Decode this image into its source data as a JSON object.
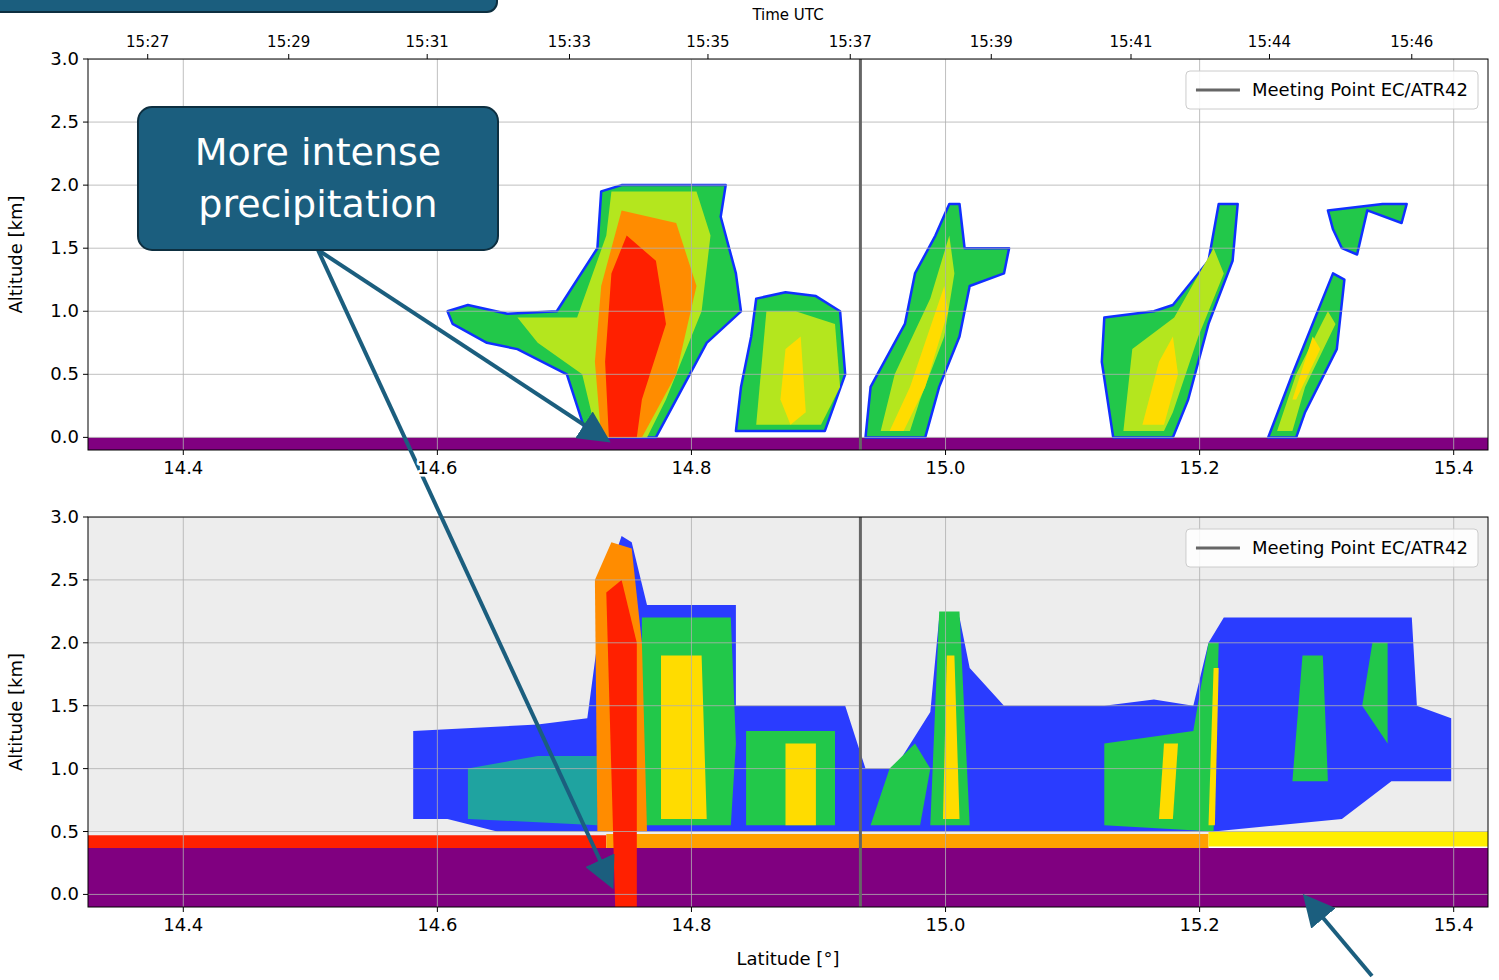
{
  "chart_data": [
    {
      "type": "contour",
      "x2_label": "Time UTC",
      "y_label": "Altitude [km]",
      "xlim": [
        14.325,
        15.427
      ],
      "ylim": [
        -0.1,
        3.0
      ],
      "xticks": [
        14.4,
        14.6,
        14.8,
        {
          "value": 15,
          "label": "15.0"
        },
        15.2,
        15.4
      ],
      "yticks": [
        {
          "value": 0,
          "label": "0.0"
        },
        0.5,
        {
          "value": 1,
          "label": "1.0"
        },
        1.5,
        {
          "value": 2,
          "label": "2.0"
        },
        2.5,
        {
          "value": 3,
          "label": "3.0"
        }
      ],
      "x2ticks": [
        {
          "value": 14.372,
          "label": "15:27"
        },
        {
          "value": 14.483,
          "label": "15:29"
        },
        {
          "value": 14.592,
          "label": "15:31"
        },
        {
          "value": 14.704,
          "label": "15:33"
        },
        {
          "value": 14.813,
          "label": "15:35"
        },
        {
          "value": 14.925,
          "label": "15:37"
        },
        {
          "value": 15.036,
          "label": "15:39"
        },
        {
          "value": 15.146,
          "label": "15:41"
        },
        {
          "value": 15.255,
          "label": "15:44"
        },
        {
          "value": 15.367,
          "label": "15:46"
        }
      ],
      "grid": true,
      "legend": "upper right",
      "series": [
        {
          "name": "Meeting Point EC/ATR42",
          "type": "vline",
          "color": "#666666",
          "x": 14.933
        }
      ],
      "annotations": [
        "More intense precipitation"
      ],
      "echoes": [
        {
          "color": "#800080",
          "lat": [
            14.325,
            15.427,
            15.427,
            14.325
          ],
          "alt": [
            -0.1,
            -0.1,
            0.0,
            0.0
          ]
        },
        {
          "color": "#22c84a",
          "lat": [
            14.608,
            14.624,
            14.655,
            14.694,
            14.726,
            14.729,
            14.745,
            14.827,
            14.823,
            14.835,
            14.839,
            14.812,
            14.772,
            14.718,
            14.702,
            14.663,
            14.639,
            14.612
          ],
          "alt": [
            1.0,
            1.05,
            0.98,
            1.0,
            1.5,
            1.95,
            2.0,
            2.0,
            1.75,
            1.3,
            1.0,
            0.75,
            0.0,
            0.0,
            0.5,
            0.7,
            0.75,
            0.9
          ]
        },
        {
          "color": "#b4e61e",
          "lat": [
            14.663,
            14.71,
            14.733,
            14.737,
            14.804,
            14.815,
            14.808,
            14.78,
            14.765,
            14.726,
            14.714,
            14.679
          ],
          "alt": [
            0.95,
            0.95,
            1.6,
            1.95,
            1.95,
            1.6,
            1.0,
            0.3,
            0.0,
            0.0,
            0.5,
            0.75
          ]
        },
        {
          "color": "#ff8c00",
          "lat": [
            14.729,
            14.745,
            14.788,
            14.804,
            14.788,
            14.761,
            14.729,
            14.724
          ],
          "alt": [
            1.2,
            1.8,
            1.7,
            1.2,
            0.5,
            0.0,
            0.0,
            0.6
          ]
        },
        {
          "color": "#ff2000",
          "lat": [
            14.737,
            14.749,
            14.772,
            14.78,
            14.761,
            14.757,
            14.735,
            14.732
          ],
          "alt": [
            1.3,
            1.6,
            1.4,
            0.9,
            0.3,
            0.0,
            0.0,
            0.6
          ]
        },
        {
          "color": "#22c84a",
          "lat": [
            14.851,
            14.874,
            14.898,
            14.917,
            14.921,
            14.905,
            14.835,
            14.839,
            14.847
          ],
          "alt": [
            1.1,
            1.15,
            1.12,
            1.0,
            0.5,
            0.05,
            0.05,
            0.4,
            0.8
          ]
        },
        {
          "color": "#b4e61e",
          "lat": [
            14.859,
            14.882,
            14.913,
            14.917,
            14.902,
            14.851
          ],
          "alt": [
            1.0,
            1.0,
            0.9,
            0.4,
            0.1,
            0.1
          ]
        },
        {
          "color": "#ffdc00",
          "lat": [
            14.874,
            14.886,
            14.89,
            14.878,
            14.87
          ],
          "alt": [
            0.7,
            0.8,
            0.2,
            0.1,
            0.3
          ]
        },
        {
          "color": "#22c84a",
          "lat": [
            14.937,
            14.941,
            14.968,
            14.976,
            14.992,
            15.003,
            15.011,
            15.015,
            15.05,
            15.046,
            15.019,
            15.011,
            14.995,
            14.984
          ],
          "alt": [
            0.0,
            0.4,
            0.9,
            1.3,
            1.6,
            1.85,
            1.85,
            1.5,
            1.5,
            1.3,
            1.2,
            0.8,
            0.4,
            0.0
          ]
        },
        {
          "color": "#b4e61e",
          "lat": [
            14.949,
            14.96,
            14.988,
            15.003,
            15.007,
            14.999,
            14.98,
            14.972
          ],
          "alt": [
            0.05,
            0.5,
            1.1,
            1.6,
            1.3,
            0.8,
            0.3,
            0.05
          ]
        },
        {
          "color": "#ffdc00",
          "lat": [
            14.956,
            14.972,
            14.999,
            15.002,
            14.984,
            14.967
          ],
          "alt": [
            0.05,
            0.4,
            1.2,
            1.0,
            0.4,
            0.05
          ]
        },
        {
          "color": "#22c84a",
          "lat": [
            15.132,
            15.123,
            15.125,
            15.164,
            15.179,
            15.207,
            15.215,
            15.23,
            15.226,
            15.207,
            15.191,
            15.179
          ],
          "alt": [
            0.0,
            0.6,
            0.95,
            1.0,
            1.05,
            1.4,
            1.85,
            1.85,
            1.4,
            0.9,
            0.3,
            0.0
          ]
        },
        {
          "color": "#b4e61e",
          "lat": [
            15.14,
            15.147,
            15.18,
            15.211,
            15.219,
            15.199,
            15.179,
            15.172
          ],
          "alt": [
            0.05,
            0.7,
            0.95,
            1.5,
            1.3,
            0.8,
            0.2,
            0.05
          ]
        },
        {
          "color": "#ffdc00",
          "lat": [
            15.155,
            15.168,
            15.179,
            15.183,
            15.172
          ],
          "alt": [
            0.1,
            0.6,
            0.8,
            0.5,
            0.1
          ]
        },
        {
          "color": "#22c84a",
          "lat": [
            15.254,
            15.273,
            15.297,
            15.305,
            15.314,
            15.308,
            15.283,
            15.276
          ],
          "alt": [
            0.0,
            0.5,
            1.1,
            1.3,
            1.25,
            0.7,
            0.2,
            0.0
          ]
        },
        {
          "color": "#b4e61e",
          "lat": [
            15.261,
            15.276,
            15.301,
            15.307,
            15.283,
            15.273
          ],
          "alt": [
            0.05,
            0.5,
            1.0,
            0.9,
            0.4,
            0.05
          ]
        },
        {
          "color": "#ffdc00",
          "lat": [
            15.273,
            15.289,
            15.295,
            15.276
          ],
          "alt": [
            0.3,
            0.8,
            0.7,
            0.3
          ]
        },
        {
          "color": "#22c84a",
          "lat": [
            15.301,
            15.344,
            15.363,
            15.359,
            15.332,
            15.324,
            15.312,
            15.305
          ],
          "alt": [
            1.8,
            1.85,
            1.85,
            1.7,
            1.8,
            1.45,
            1.5,
            1.65
          ]
        }
      ]
    },
    {
      "type": "contour",
      "x_label": "Latitude [°]",
      "y_label": "Altitude [km]",
      "xlim": [
        14.325,
        15.427
      ],
      "ylim": [
        -0.1,
        3.0
      ],
      "xticks": [
        14.4,
        14.6,
        14.8,
        {
          "value": 15,
          "label": "15.0"
        },
        15.2,
        15.4
      ],
      "yticks": [
        {
          "value": 0,
          "label": "0.0"
        },
        0.5,
        {
          "value": 1,
          "label": "1.0"
        },
        1.5,
        {
          "value": 2,
          "label": "2.0"
        },
        2.5,
        {
          "value": 3,
          "label": "3.0"
        }
      ],
      "grid": true,
      "legend": "upper right",
      "series": [
        {
          "name": "Meeting Point EC/ATR42",
          "type": "vline",
          "color": "#666666",
          "x": 14.933
        }
      ],
      "echoes": [
        {
          "color": "#ededed",
          "lat": [
            14.325,
            15.427,
            15.427,
            14.325
          ],
          "alt": [
            0.45,
            0.45,
            3.0,
            3.0
          ]
        },
        {
          "color": "#800080",
          "lat": [
            14.325,
            15.427,
            15.427,
            14.325
          ],
          "alt": [
            -0.1,
            -0.1,
            0.37,
            0.37
          ]
        },
        {
          "color": "#ff2000",
          "lat": [
            14.325,
            14.733,
            14.733,
            14.325
          ],
          "alt": [
            0.37,
            0.37,
            0.47,
            0.47
          ]
        },
        {
          "color": "#ffa000",
          "lat": [
            14.733,
            15.207,
            15.207,
            14.733
          ],
          "alt": [
            0.37,
            0.37,
            0.48,
            0.48
          ]
        },
        {
          "color": "#ffee00",
          "lat": [
            15.207,
            15.427,
            15.427,
            15.207
          ],
          "alt": [
            0.38,
            0.38,
            0.5,
            0.5
          ]
        },
        {
          "color": "#2a3cff",
          "lat": [
            14.581,
            14.581,
            14.679,
            14.718,
            14.726,
            14.733,
            14.745,
            14.753,
            14.765,
            14.835,
            14.835,
            14.921,
            14.937,
            14.96,
            14.988,
            14.995,
            15.011,
            15.019,
            15.046,
            15.125,
            15.164,
            15.195,
            15.207,
            15.219,
            15.367,
            15.371,
            15.398,
            15.398,
            15.351,
            15.312,
            15.211,
            14.647,
            14.608
          ],
          "alt": [
            0.6,
            1.3,
            1.35,
            1.4,
            2.0,
            2.5,
            2.85,
            2.8,
            2.3,
            2.3,
            1.5,
            1.5,
            1.0,
            1.0,
            1.45,
            2.2,
            2.2,
            1.8,
            1.5,
            1.5,
            1.55,
            1.5,
            2.0,
            2.2,
            2.2,
            1.5,
            1.4,
            0.9,
            0.9,
            0.6,
            0.5,
            0.5,
            0.6
          ]
        },
        {
          "color": "#1fa3a0",
          "lat": [
            14.624,
            14.679,
            14.726,
            14.726,
            14.624
          ],
          "alt": [
            1.0,
            1.1,
            1.1,
            0.55,
            0.6
          ]
        },
        {
          "color": "#22c84a",
          "lat": [
            14.761,
            14.831,
            14.835,
            14.831,
            14.761
          ],
          "alt": [
            2.2,
            2.2,
            1.2,
            0.55,
            0.55
          ]
        },
        {
          "color": "#22c84a",
          "lat": [
            14.843,
            14.913,
            14.913,
            14.843
          ],
          "alt": [
            1.3,
            1.3,
            0.55,
            0.55
          ]
        },
        {
          "color": "#ffdc00",
          "lat": [
            14.874,
            14.898,
            14.898,
            14.874
          ],
          "alt": [
            1.2,
            1.2,
            0.55,
            0.55
          ]
        },
        {
          "color": "#ffdc00",
          "lat": [
            14.776,
            14.808,
            14.812,
            14.776
          ],
          "alt": [
            1.9,
            1.9,
            0.6,
            0.6
          ]
        },
        {
          "color": "#ff8c00",
          "lat": [
            14.724,
            14.737,
            14.753,
            14.761,
            14.765,
            14.726
          ],
          "alt": [
            2.5,
            2.8,
            2.75,
            2.0,
            0.5,
            0.5
          ]
        },
        {
          "color": "#ff2000",
          "lat": [
            14.733,
            14.745,
            14.757,
            14.757,
            14.74
          ],
          "alt": [
            2.4,
            2.5,
            2.0,
            -0.1,
            -0.1
          ]
        },
        {
          "color": "#22c84a",
          "lat": [
            14.941,
            14.956,
            14.976,
            14.988,
            14.98
          ],
          "alt": [
            0.55,
            1.0,
            1.2,
            1.0,
            0.55
          ]
        },
        {
          "color": "#22c84a",
          "lat": [
            14.988,
            14.995,
            15.011,
            15.019
          ],
          "alt": [
            0.55,
            2.25,
            2.25,
            0.55
          ]
        },
        {
          "color": "#ffdc00",
          "lat": [
            14.998,
            15.001,
            15.007,
            15.011
          ],
          "alt": [
            0.6,
            1.9,
            1.9,
            0.6
          ]
        },
        {
          "color": "#22c84a",
          "lat": [
            15.125,
            15.125,
            15.195,
            15.207,
            15.215,
            15.211
          ],
          "alt": [
            0.55,
            1.2,
            1.3,
            2.0,
            2.0,
            0.5
          ]
        },
        {
          "color": "#ffdc00",
          "lat": [
            15.168,
            15.172,
            15.183,
            15.179
          ],
          "alt": [
            0.6,
            1.2,
            1.2,
            0.6
          ]
        },
        {
          "color": "#ffdc00",
          "lat": [
            15.207,
            15.211,
            15.215,
            15.212
          ],
          "alt": [
            0.55,
            1.8,
            1.8,
            0.55
          ]
        },
        {
          "color": "#22c84a",
          "lat": [
            15.273,
            15.281,
            15.297,
            15.301
          ],
          "alt": [
            0.9,
            1.9,
            1.9,
            0.9
          ]
        },
        {
          "color": "#22c84a",
          "lat": [
            15.328,
            15.336,
            15.348,
            15.348
          ],
          "alt": [
            1.5,
            2.0,
            2.0,
            1.2
          ]
        }
      ]
    }
  ]
}
